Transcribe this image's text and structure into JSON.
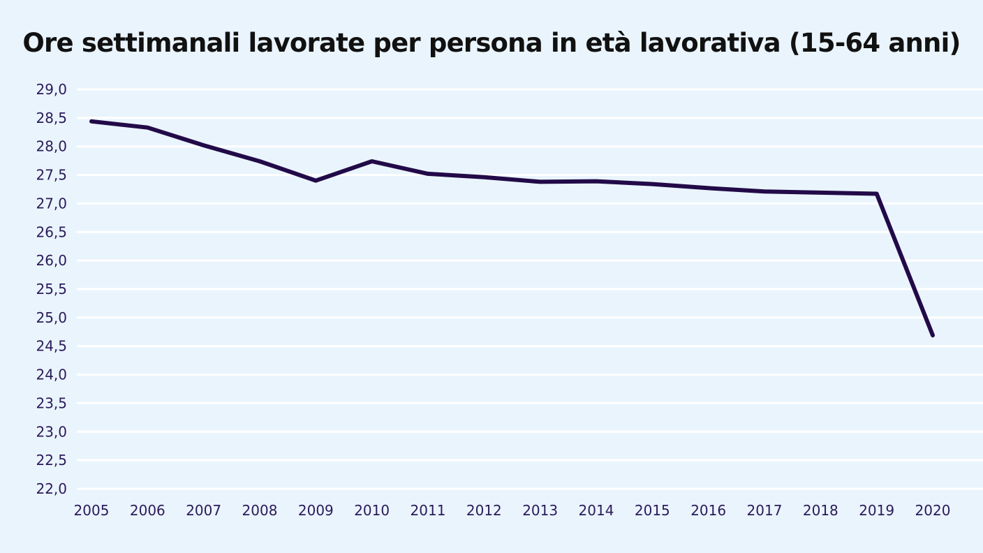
{
  "chart_data": {
    "type": "line",
    "title": "Ore settimanali lavorate per persona in età lavorativa (15-64 anni)",
    "xlabel": "",
    "ylabel": "",
    "categories": [
      "2005",
      "2006",
      "2007",
      "2008",
      "2009",
      "2010",
      "2011",
      "2012",
      "2013",
      "2014",
      "2015",
      "2016",
      "2017",
      "2018",
      "2019",
      "2020"
    ],
    "series": [
      {
        "values": [
          28.44,
          28.33,
          28.02,
          27.74,
          27.4,
          27.74,
          27.52,
          27.46,
          27.38,
          27.39,
          27.34,
          27.27,
          27.21,
          27.19,
          27.17,
          24.69
        ]
      }
    ],
    "ylim": [
      22.0,
      29.0
    ],
    "yticks": [
      "29,0",
      "28,5",
      "28,0",
      "27,5",
      "27,0",
      "26,5",
      "26,0",
      "25,5",
      "25,0",
      "24,5",
      "24,0",
      "23,5",
      "23,0",
      "22,5",
      "22,0"
    ],
    "grid": true,
    "colors": {
      "background": "#eaf4fd",
      "line": "#220a48",
      "grid": "#ffffff"
    }
  }
}
